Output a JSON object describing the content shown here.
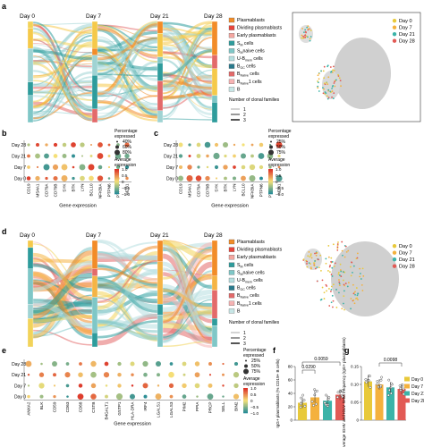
{
  "panels": {
    "a": "a",
    "b": "b",
    "c": "c",
    "d": "d",
    "e": "e",
    "f": "f",
    "g": "g"
  },
  "sankey_top": {
    "days": [
      "Day 0",
      "Day 7",
      "Day 21",
      "Day 28"
    ],
    "legend": [
      "Plasmablasts",
      "Dividing plasmablasts",
      "Early plasmablasts",
      "S",
      "S",
      "U-B",
      "B",
      "B",
      "B",
      "B"
    ],
    "legend_subs": [
      "",
      "",
      "",
      "M",
      "M",
      "mem",
      "GC",
      "Naïve",
      "Naïve",
      ""
    ],
    "legend_suffix": [
      "",
      "",
      "",
      " cells",
      "naive cells",
      " cells",
      " cells",
      " cells",
      "1 cells",
      ""
    ],
    "legend_colors": [
      "#f28c28",
      "#e8453c",
      "#f4a6a0",
      "#2e9c9c",
      "#7fc7c7",
      "#b6dfe0",
      "#2a7a8c",
      "#e36a6a",
      "#f6b3b3",
      "#c7e6e6"
    ],
    "clonal_title": "Number of clonal families",
    "clonal_values": [
      "1",
      "2",
      "3"
    ],
    "umap_days": [
      "Day 0",
      "Day 7",
      "Day 21",
      "Day 28"
    ]
  },
  "sankey_bottom": {
    "days": [
      "Day 0",
      "Day 7",
      "Day 21",
      "Day 28"
    ],
    "umap_days": [
      "Day 0",
      "Day 7",
      "Day 21",
      "Day 28"
    ]
  },
  "dotplot_b": {
    "rows": [
      "Day 28",
      "Day 21",
      "Day 7",
      "Day 0"
    ],
    "genes": [
      "CD19",
      "MS4A1",
      "CD79A",
      "CD79B",
      "SYK",
      "BTK",
      "LYN",
      "BCL10",
      "NFKBIA",
      "PTPN6",
      "PTPRC",
      "MZB1"
    ],
    "xlabel": "Gene expression",
    "pct_title": "Percentage expressed",
    "pct_values": [
      "40%",
      "60%",
      "80%"
    ],
    "avg_title": "Average expression",
    "avg_ticks": [
      "1.0",
      "0.5",
      "0",
      "−0.5",
      "−1.0"
    ]
  },
  "dotplot_c": {
    "rows": [
      "Day 28",
      "Day 21",
      "Day 7",
      "Day 0"
    ],
    "genes": [
      "CD19",
      "MS4A1",
      "CD79A",
      "CD79B",
      "SYK",
      "BTK",
      "LYN",
      "BCL10",
      "NFKBIA",
      "PTPN6",
      "PTPRC",
      "MZB1"
    ],
    "xlabel": "Gene expression",
    "pct_title": "Percentage expressed",
    "pct_values": [
      "25%",
      "50%",
      "75%"
    ],
    "avg_title": "Average expression",
    "avg_ticks": [
      "1.0",
      "0.5",
      "0",
      "−0.5",
      "−1.0"
    ]
  },
  "dotplot_e": {
    "rows": [
      "Day 28",
      "Day 21",
      "Day 7",
      "Day 0"
    ],
    "genes": [
      "ANXA2",
      "BLK",
      "CD59",
      "CD63",
      "CD68",
      "CSTB",
      "B4GALT1",
      "GSTP1",
      "HLA-DRA",
      "IRF4",
      "LGALS1",
      "LGALS3",
      "PIM2",
      "PPIA",
      "PRCP",
      "SELL",
      "BIN2"
    ],
    "xlabel": "Gene expression",
    "pct_title": "Percentage expressed",
    "pct_values": [
      "25%",
      "50%",
      "75%"
    ],
    "avg_title": "Average expression",
    "avg_ticks": [
      "1.0",
      "0.5",
      "0",
      "−0.5",
      "−1.0"
    ]
  },
  "bar_f": {
    "ylabel": "IgG+ plasmablasts (% CD19+ B cells)",
    "yticks": [
      "0",
      "20",
      "40",
      "60",
      "80"
    ],
    "pvalues": [
      "0.0059",
      "0.0290"
    ]
  },
  "bar_g": {
    "ylabel": "Average IGHV and IGLV SHM frequency (IgG+ plasmablasts)",
    "yticks": [
      "0",
      "0.05",
      "0.10",
      "0.15"
    ],
    "pvalues": [
      "0.0098"
    ],
    "legend": [
      "Day 0",
      "Day 7",
      "Day 21",
      "Day 28"
    ]
  },
  "colors": {
    "day0": "#e8c93a",
    "day7": "#f4b13d",
    "day21": "#3bb3a8",
    "day28": "#e25a55",
    "plasmablast": "#f28c28",
    "teal": "#2e9c9c",
    "lightteal": "#9fd3d3"
  },
  "chart_data": [
    {
      "type": "bar",
      "categories": [
        "Day 0",
        "Day 7",
        "Day 21",
        "Day 28"
      ],
      "values": [
        26,
        34,
        29,
        38
      ],
      "ylabel": "IgG+ plasmablasts (% CD19+ B cells)",
      "ylim": [
        0,
        80
      ]
    },
    {
      "type": "bar",
      "categories": [
        "Day 0",
        "Day 7",
        "Day 21",
        "Day 28"
      ],
      "values": [
        0.13,
        0.12,
        0.11,
        0.105
      ],
      "ylabel": "Average IGHV and IGLV SHM frequency (IgG+ plasmablasts)",
      "ylim": [
        0,
        0.18
      ]
    }
  ]
}
